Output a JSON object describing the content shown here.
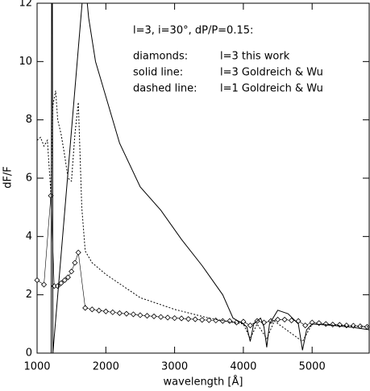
{
  "chart_data": {
    "type": "line",
    "x_label": "wavelength [Å]",
    "y_label": "dF/F",
    "annotation_title": "l=3, i=30°, dP/P=0.15:",
    "annotations": [
      [
        "diamonds:",
        "l=3 this work"
      ],
      [
        "solid line:",
        "l=3 Goldreich & Wu"
      ],
      [
        "dashed line:",
        "l=1 Goldreich & Wu"
      ]
    ],
    "xlim": [
      1000,
      5830
    ],
    "ylim": [
      0,
      12
    ],
    "xticks": [
      1000,
      2000,
      3000,
      4000,
      5000
    ],
    "yticks": [
      0,
      2,
      4,
      6,
      8,
      10,
      12
    ],
    "color": "#000000",
    "series": [
      {
        "style": "diamond",
        "x": [
          1000,
          1100,
          1200,
          1250,
          1300,
          1350,
          1400,
          1450,
          1500,
          1550,
          1600,
          1700,
          1800,
          1900,
          2000,
          2100,
          2200,
          2300,
          2400,
          2500,
          2600,
          2700,
          2800,
          2900,
          3000,
          3100,
          3200,
          3300,
          3400,
          3500,
          3600,
          3700,
          3800,
          3900,
          4000,
          4100,
          4200,
          4300,
          4400,
          4500,
          4600,
          4700,
          4800,
          4900,
          5000,
          5100,
          5200,
          5300,
          5400,
          5500,
          5600,
          5700,
          5800
        ],
        "values": [
          2.5,
          2.35,
          5.4,
          2.3,
          2.3,
          2.4,
          2.5,
          2.6,
          2.8,
          3.1,
          3.45,
          1.55,
          1.5,
          1.46,
          1.43,
          1.4,
          1.37,
          1.35,
          1.33,
          1.3,
          1.28,
          1.26,
          1.24,
          1.22,
          1.2,
          1.19,
          1.17,
          1.16,
          1.14,
          1.13,
          1.12,
          1.1,
          1.1,
          1.05,
          1.08,
          0.95,
          1.1,
          1.05,
          1.1,
          1.15,
          1.15,
          1.12,
          1.1,
          0.95,
          1.05,
          1.03,
          1.0,
          0.98,
          0.97,
          0.95,
          0.94,
          0.92,
          0.9
        ]
      },
      {
        "style": "solid",
        "x": [
          1205,
          1212,
          1222,
          1230,
          1690,
          1750,
          1850,
          2000,
          2200,
          2500,
          2800,
          3100,
          3400,
          3700,
          3850,
          4000,
          4050,
          4100,
          4150,
          4250,
          4300,
          4340,
          4380,
          4500,
          4650,
          4800,
          4860,
          4920,
          5000,
          5300,
          5600,
          5830
        ],
        "values": [
          0,
          13,
          13,
          0,
          13,
          11.5,
          10,
          8.8,
          7.2,
          5.7,
          4.9,
          3.9,
          3.0,
          2.0,
          1.2,
          1.0,
          0.9,
          0.4,
          1.0,
          1.2,
          0.9,
          0.2,
          1.0,
          1.47,
          1.35,
          1.0,
          0.1,
          0.8,
          1.0,
          0.95,
          0.88,
          0.8
        ]
      },
      {
        "style": "dashed",
        "x": [
          1000,
          1050,
          1100,
          1150,
          1200,
          1230,
          1270,
          1300,
          1350,
          1400,
          1450,
          1500,
          1550,
          1600,
          1650,
          1700,
          1800,
          2000,
          2500,
          3000,
          3500,
          3850,
          4000,
          4100,
          4200,
          4340,
          4450,
          4860,
          5000,
          5400,
          5830
        ],
        "values": [
          7.3,
          7.4,
          7.1,
          7.3,
          5.5,
          8.5,
          9.0,
          8.0,
          7.5,
          6.8,
          6.0,
          5.9,
          7.5,
          8.6,
          5.0,
          3.5,
          3.1,
          2.7,
          1.9,
          1.5,
          1.2,
          1.05,
          1.0,
          0.5,
          1.0,
          0.5,
          1.1,
          0.4,
          1.0,
          0.95,
          0.9
        ]
      }
    ]
  }
}
